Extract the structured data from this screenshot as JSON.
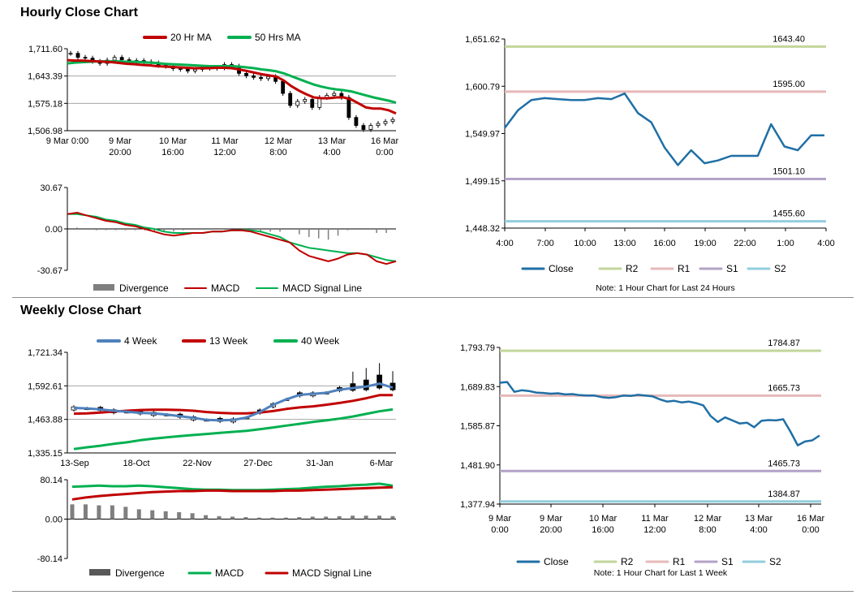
{
  "sections": {
    "hourly_title": "Hourly Close Chart",
    "weekly_title": "Weekly Close Chart"
  },
  "chart_data": [
    {
      "id": "hourly_price",
      "type": "line",
      "title": "Hourly Close Chart",
      "x_ticks": [
        "9 Mar 0:00",
        "9 Mar\n20:00",
        "10 Mar\n16:00",
        "11 Mar\n12:00",
        "12 Mar\n8:00",
        "13 Mar\n4:00",
        "16 Mar\n0:00"
      ],
      "y_ticks": [
        "1,711.60",
        "1,643.39",
        "1,575.18",
        "1,506.98"
      ],
      "ylim": [
        1506.98,
        1711.6
      ],
      "legend": [
        "20 Hr MA",
        "50 Hrs MA"
      ],
      "series": [
        {
          "name": "Close",
          "values": [
            1700,
            1690,
            1688,
            1680,
            1675,
            1683,
            1690,
            1684,
            1680,
            1682,
            1679,
            1676,
            1670,
            1668,
            1662,
            1660,
            1656,
            1660,
            1665,
            1663,
            1664,
            1672,
            1668,
            1650,
            1644,
            1640,
            1637,
            1642,
            1630,
            1600,
            1570,
            1580,
            1585,
            1565,
            1590,
            1595,
            1600,
            1590,
            1540,
            1520,
            1510,
            1520,
            1525,
            1530,
            1535
          ]
        },
        {
          "name": "20 Hr MA",
          "values": [
            1683,
            1682,
            1682,
            1681,
            1680,
            1679,
            1678,
            1676,
            1674,
            1673,
            1671,
            1670,
            1668,
            1667,
            1666,
            1665,
            1664,
            1663,
            1663,
            1663,
            1664,
            1664,
            1663,
            1660,
            1656,
            1652,
            1648,
            1645,
            1642,
            1632,
            1618,
            1607,
            1598,
            1590,
            1588,
            1588,
            1590,
            1590,
            1585,
            1575,
            1565,
            1562,
            1562,
            1558,
            1550
          ]
        },
        {
          "name": "50 Hrs MA",
          "values": [
            1675,
            1677,
            1678,
            1679,
            1680,
            1680,
            1680,
            1680,
            1679,
            1679,
            1678,
            1677,
            1676,
            1674,
            1673,
            1672,
            1671,
            1670,
            1669,
            1668,
            1668,
            1668,
            1668,
            1667,
            1665,
            1663,
            1660,
            1658,
            1655,
            1650,
            1643,
            1636,
            1629,
            1622,
            1617,
            1613,
            1610,
            1608,
            1605,
            1600,
            1595,
            1590,
            1586,
            1582,
            1577
          ]
        }
      ]
    },
    {
      "id": "hourly_macd",
      "type": "line",
      "y_ticks": [
        "30.67",
        "0.00",
        "-30.67"
      ],
      "ylim": [
        -30.67,
        30.67
      ],
      "legend": [
        "Divergence",
        "MACD",
        "MACD Signal Line"
      ],
      "series": [
        {
          "name": "MACD",
          "values": [
            11,
            12,
            10,
            8,
            6,
            5,
            3,
            2,
            0,
            -2,
            -4,
            -5,
            -4,
            -3,
            -3,
            -2,
            -2,
            -1,
            -1,
            -2,
            -4,
            -6,
            -8,
            -10,
            -16,
            -20,
            -22,
            -24,
            -22,
            -19,
            -18,
            -19,
            -24,
            -26,
            -24
          ]
        },
        {
          "name": "MACD Signal Line",
          "values": [
            11,
            11,
            10,
            9,
            7,
            6,
            4,
            3,
            1,
            0,
            -2,
            -3,
            -3,
            -3,
            -3,
            -2,
            -2,
            -1,
            -1,
            -1,
            -2,
            -4,
            -6,
            -10,
            -12,
            -14,
            -15,
            -16,
            -17,
            -18,
            -18,
            -19,
            -21,
            -23,
            -24
          ]
        }
      ]
    },
    {
      "id": "hourly_levels",
      "type": "line",
      "note": "Note: 1 Hour Chart for Last 24 Hours",
      "x_ticks": [
        "4:00",
        "7:00",
        "10:00",
        "13:00",
        "16:00",
        "19:00",
        "22:00",
        "1:00",
        "4:00"
      ],
      "y_ticks": [
        "1,651.62",
        "1,600.79",
        "1,549.97",
        "1,499.15",
        "1,448.32"
      ],
      "ylim": [
        1448.32,
        1651.62
      ],
      "levels": [
        {
          "name": "R2",
          "value": 1643.4,
          "label": "1643.40",
          "color": "#c3d69b"
        },
        {
          "name": "R1",
          "value": 1595.0,
          "label": "1595.00",
          "color": "#e6b9b8"
        },
        {
          "name": "S1",
          "value": 1501.1,
          "label": "1501.10",
          "color": "#b3a2c7"
        },
        {
          "name": "S2",
          "value": 1455.6,
          "label": "1455.60",
          "color": "#93cddd"
        }
      ],
      "legend": [
        "Close",
        "R2",
        "R1",
        "S1",
        "S2"
      ],
      "series": [
        {
          "name": "Close",
          "values": [
            1556,
            1575,
            1586,
            1588,
            1587,
            1586,
            1586,
            1588,
            1587,
            1593,
            1572,
            1562,
            1535,
            1516,
            1532,
            1518,
            1521,
            1526,
            1526,
            1526,
            1560,
            1536,
            1532,
            1548,
            1548
          ]
        }
      ]
    },
    {
      "id": "weekly_price",
      "type": "line",
      "title": "Weekly Close Chart",
      "x_ticks": [
        "13-Sep",
        "18-Oct",
        "22-Nov",
        "27-Dec",
        "31-Jan",
        "6-Mar"
      ],
      "y_ticks": [
        "1,721.34",
        "1,592.61",
        "1,463.88",
        "1,335.15"
      ],
      "ylim": [
        1335.15,
        1721.34
      ],
      "legend": [
        "4 Week",
        "13 Week",
        "40 Week"
      ],
      "series": [
        {
          "name": "4 Week",
          "values": [
            1508,
            1506,
            1502,
            1497,
            1493,
            1489,
            1487,
            1482,
            1476,
            1470,
            1462,
            1460,
            1462,
            1471,
            1492,
            1520,
            1541,
            1558,
            1562,
            1566,
            1578,
            1584,
            1590,
            1601,
            1586
          ]
        },
        {
          "name": "13 Week",
          "values": [
            1486,
            1487,
            1490,
            1494,
            1497,
            1500,
            1501,
            1501,
            1500,
            1497,
            1492,
            1489,
            1487,
            1487,
            1490,
            1496,
            1504,
            1510,
            1514,
            1520,
            1527,
            1535,
            1545,
            1557,
            1557
          ]
        },
        {
          "name": "40 Week",
          "values": [
            1350,
            1357,
            1363,
            1370,
            1376,
            1384,
            1390,
            1395,
            1400,
            1404,
            1408,
            1412,
            1416,
            1420,
            1426,
            1433,
            1440,
            1447,
            1454,
            1460,
            1467,
            1475,
            1485,
            1495,
            1502
          ]
        }
      ]
    },
    {
      "id": "weekly_macd",
      "type": "bar",
      "y_ticks": [
        "80.14",
        "0.00",
        "-80.14"
      ],
      "ylim": [
        -80.14,
        80.14
      ],
      "legend": [
        "Divergence",
        "MACD",
        "MACD Signal Line"
      ],
      "series": [
        {
          "name": "Divergence",
          "values": [
            30,
            30,
            28,
            28,
            25,
            20,
            18,
            16,
            14,
            12,
            8,
            6,
            5,
            4,
            3,
            3,
            3,
            4,
            5,
            5,
            6,
            7,
            7,
            7,
            6
          ]
        },
        {
          "name": "MACD",
          "values": [
            66,
            67,
            68,
            67,
            67,
            68,
            67,
            65,
            63,
            61,
            60,
            60,
            59,
            59,
            59,
            60,
            61,
            62,
            64,
            66,
            67,
            69,
            70,
            72,
            68
          ]
        },
        {
          "name": "MACD Signal Line",
          "values": [
            40,
            44,
            47,
            49,
            51,
            53,
            55,
            56,
            57,
            57,
            58,
            58,
            57,
            57,
            57,
            57,
            58,
            58,
            59,
            60,
            61,
            62,
            63,
            64,
            65
          ]
        }
      ]
    },
    {
      "id": "weekly_levels",
      "type": "line",
      "note": "Note: 1 Hour Chart for Last 1 Week",
      "x_ticks": [
        "9 Mar\n0:00",
        "9 Mar\n20:00",
        "10 Mar\n16:00",
        "11 Mar\n12:00",
        "12 Mar\n8:00",
        "13 Mar\n4:00",
        "16 Mar\n0:00"
      ],
      "y_ticks": [
        "1,793.79",
        "1,689.83",
        "1,585.87",
        "1,481.90",
        "1,377.94"
      ],
      "ylim": [
        1377.94,
        1793.79
      ],
      "levels": [
        {
          "name": "R2",
          "value": 1784.87,
          "label": "1784.87",
          "color": "#c3d69b"
        },
        {
          "name": "R1",
          "value": 1665.73,
          "label": "1665.73",
          "color": "#e6b9b8"
        },
        {
          "name": "S1",
          "value": 1465.73,
          "label": "1465.73",
          "color": "#b3a2c7"
        },
        {
          "name": "S2",
          "value": 1384.87,
          "label": "1384.87",
          "color": "#93cddd"
        }
      ],
      "legend": [
        "Close",
        "R2",
        "R1",
        "S1",
        "S2"
      ],
      "series": [
        {
          "name": "Close",
          "values": [
            1700,
            1702,
            1676,
            1680,
            1678,
            1674,
            1673,
            1671,
            1672,
            1669,
            1670,
            1667,
            1666,
            1666,
            1662,
            1660,
            1662,
            1666,
            1665,
            1668,
            1666,
            1664,
            1656,
            1650,
            1652,
            1648,
            1650,
            1646,
            1640,
            1612,
            1596,
            1608,
            1600,
            1592,
            1594,
            1582,
            1599,
            1601,
            1600,
            1603,
            1570,
            1534,
            1544,
            1547,
            1560
          ]
        }
      ]
    }
  ],
  "colors": {
    "close": "#1f6fa5",
    "ma_red": "#c00000",
    "ma_green": "#00b050",
    "week4_blue": "#4f81bd",
    "divergence_gray": "#7f7f7f"
  }
}
